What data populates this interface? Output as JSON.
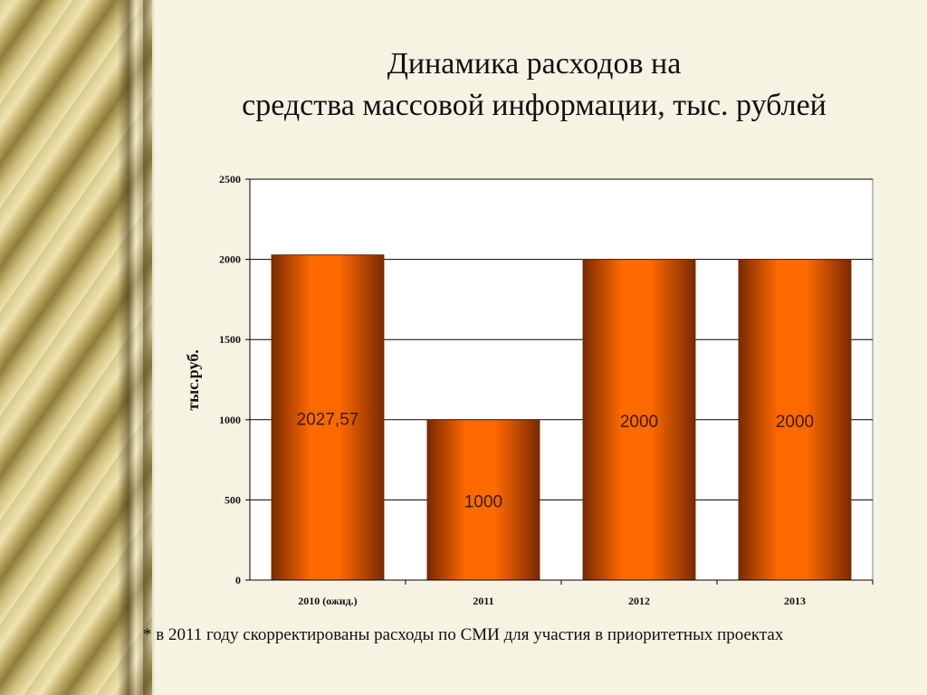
{
  "title": {
    "line1": "Динамика расходов на",
    "line2": "средства массовой информации, тыс. рублей"
  },
  "footnote": "* в 2011 году скорректированы расходы по СМИ для участия в приоритетных проектах",
  "chart_data": {
    "type": "bar",
    "categories": [
      "2010 (ожид.)",
      "2011",
      "2012",
      "2013"
    ],
    "values": [
      2027.57,
      1000,
      2000,
      2000
    ],
    "data_labels": [
      "2027,57",
      "1000",
      "2000",
      "2000"
    ],
    "ylabel": "тыс.руб.",
    "ylim": [
      0,
      2500
    ],
    "yticks": [
      0,
      500,
      1000,
      1500,
      2000,
      2500
    ],
    "grid": true,
    "legend": "none",
    "colors": {
      "bar_center": "#ff6a00",
      "bar_edge": "#7a2a00",
      "label_text": "#3a1a00",
      "grid": "#000000"
    }
  }
}
